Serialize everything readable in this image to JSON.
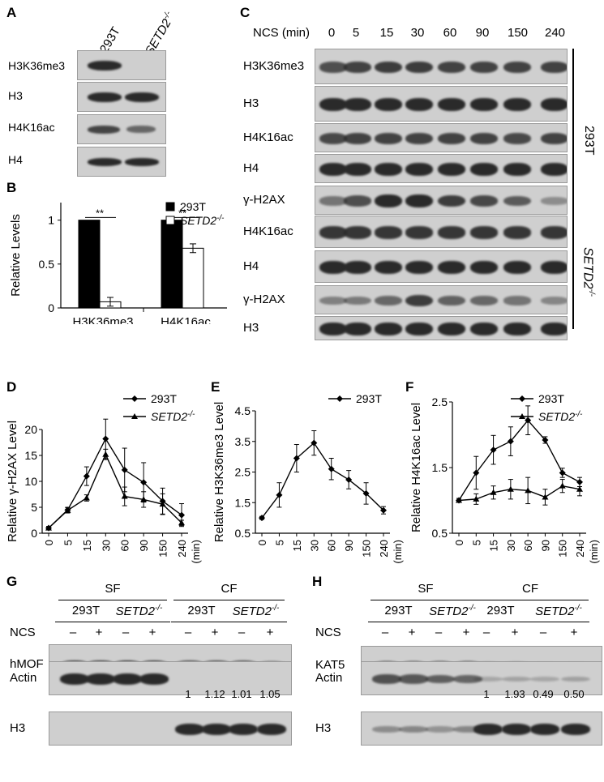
{
  "panels": {
    "A": "A",
    "B": "B",
    "C": "C",
    "D": "D",
    "E": "E",
    "F": "F",
    "G": "G",
    "H": "H"
  },
  "panelA": {
    "cols": [
      "293T",
      "SETD2-/-"
    ],
    "rows": [
      "H3K36me3",
      "H3",
      "H4K16ac",
      "H4"
    ]
  },
  "panelC": {
    "header": "NCS (min)",
    "timepoints": [
      "0",
      "5",
      "15",
      "30",
      "60",
      "90",
      "150",
      "240"
    ],
    "rows": [
      "H3K36me3",
      "H3",
      "H4K16ac",
      "H4",
      "γ-H2AX",
      "H4K16ac",
      "H4",
      "γ-H2AX",
      "H3"
    ],
    "group1": "293T",
    "group2": "SETD2-/-"
  },
  "panelG": {
    "fractions": [
      "SF",
      "CF"
    ],
    "cells": [
      "293T",
      "SETD2-/-",
      "293T",
      "SETD2-/-"
    ],
    "ncs_label": "NCS",
    "ncs": [
      "–",
      "+",
      "–",
      "+",
      "–",
      "+",
      "–",
      "+"
    ],
    "rows": [
      "hMOF",
      "Actin",
      "H3"
    ],
    "quant": [
      "1",
      "1.12",
      "1.01",
      "1.05"
    ]
  },
  "panelH": {
    "fractions": [
      "SF",
      "CF"
    ],
    "cells": [
      "293T",
      "SETD2-/-",
      "293T",
      "SETD2-/-"
    ],
    "ncs_label": "NCS",
    "ncs": [
      "–",
      "+",
      "–",
      "+",
      "–",
      "+",
      "–",
      "+"
    ],
    "rows": [
      "KAT5",
      "Actin",
      "H3"
    ],
    "quant": [
      "1",
      "1.93",
      "0.49",
      "0.50"
    ]
  },
  "chart_data": [
    {
      "panel": "B",
      "type": "bar",
      "ylabel": "Relative Levels",
      "categories": [
        "H3K36me3",
        "H4K16ac"
      ],
      "ylim": [
        0,
        1.2
      ],
      "yticks": [
        "0",
        "0.5",
        "1"
      ],
      "series": [
        {
          "name": "293T",
          "values": [
            1.0,
            1.0
          ],
          "errors": [
            0,
            0
          ],
          "color": "#000000"
        },
        {
          "name": "SETD2-/-",
          "values": [
            0.07,
            0.68
          ],
          "errors": [
            0.05,
            0.05
          ],
          "color": "#ffffff"
        }
      ],
      "significance": [
        "**",
        "**"
      ]
    },
    {
      "panel": "D",
      "type": "line",
      "ylabel": "Relative γ-H2AX Level",
      "x": [
        "0",
        "5",
        "15",
        "30",
        "60",
        "90",
        "150",
        "240"
      ],
      "xunit": "(min)",
      "ylim": [
        0,
        20
      ],
      "yticks": [
        "0",
        "5",
        "10",
        "15",
        "20"
      ],
      "series": [
        {
          "name": "293T",
          "marker": "diamond",
          "values": [
            1,
            4.5,
            11,
            18.2,
            12.2,
            9.8,
            6.2,
            3.5
          ],
          "errors": [
            0.3,
            0.5,
            1.8,
            3.8,
            4.2,
            3.8,
            2.5,
            2.2
          ]
        },
        {
          "name": "SETD2-/-",
          "marker": "triangle",
          "values": [
            1,
            4.4,
            6.8,
            15.2,
            7.1,
            6.5,
            5.6,
            2
          ],
          "errors": [
            0.3,
            0.5,
            0.6,
            1.0,
            1.8,
            1.5,
            2.0,
            0.5
          ]
        }
      ]
    },
    {
      "panel": "E",
      "type": "line",
      "ylabel": "Relative H3K36me3 Level",
      "x": [
        "0",
        "5",
        "15",
        "30",
        "60",
        "90",
        "150",
        "240"
      ],
      "xunit": "(min)",
      "ylim": [
        0.5,
        4.5
      ],
      "yticks": [
        "0.5",
        "1.5",
        "2.5",
        "3.5",
        "4.5"
      ],
      "series": [
        {
          "name": "293T",
          "marker": "diamond",
          "values": [
            1,
            1.75,
            2.95,
            3.45,
            2.6,
            2.25,
            1.8,
            1.25
          ],
          "errors": [
            0.05,
            0.4,
            0.45,
            0.4,
            0.35,
            0.3,
            0.35,
            0.12
          ]
        }
      ]
    },
    {
      "panel": "F",
      "type": "line",
      "ylabel": "Relative H4K16ac Level",
      "x": [
        "0",
        "5",
        "15",
        "30",
        "60",
        "90",
        "150",
        "240"
      ],
      "xunit": "(min)",
      "ylim": [
        0.5,
        2.5
      ],
      "yticks": [
        "0.5",
        "1.5",
        "2.5"
      ],
      "series": [
        {
          "name": "293T",
          "marker": "diamond",
          "values": [
            1,
            1.42,
            1.77,
            1.9,
            2.22,
            1.92,
            1.42,
            1.28
          ],
          "errors": [
            0.03,
            0.25,
            0.22,
            0.22,
            0.22,
            0.05,
            0.07,
            0.07
          ]
        },
        {
          "name": "SETD2-/-",
          "marker": "triangle",
          "values": [
            1,
            1.02,
            1.12,
            1.17,
            1.15,
            1.05,
            1.22,
            1.17
          ],
          "errors": [
            0.03,
            0.08,
            0.1,
            0.15,
            0.2,
            0.12,
            0.1,
            0.1
          ]
        }
      ]
    }
  ]
}
